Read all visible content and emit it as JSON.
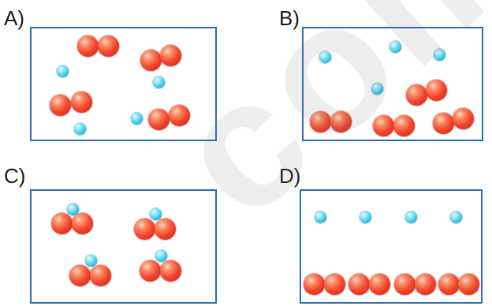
{
  "panels": [
    {
      "label": "A)"
    },
    {
      "label": "B)"
    },
    {
      "label": "C)"
    },
    {
      "label": "D)"
    }
  ],
  "watermark": "com",
  "colors": {
    "frame": "#2a6db5",
    "large_particle": "#e8402a",
    "small_particle": "#27b8e2"
  }
}
